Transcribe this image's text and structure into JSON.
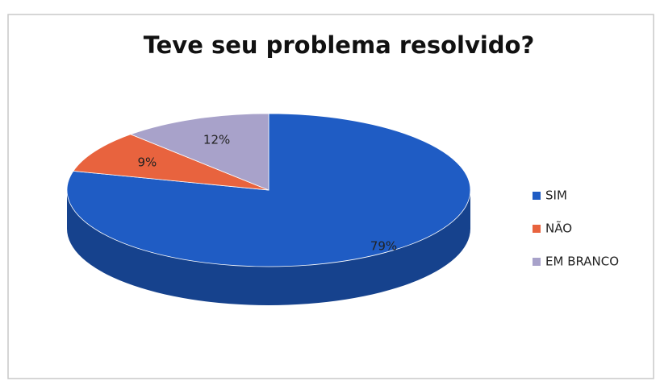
{
  "chart_data": {
    "type": "pie",
    "title": "Teve seu problema resolvido?",
    "categories": [
      "SIM",
      "NÃO",
      "EM BRANCO"
    ],
    "values": [
      79,
      9,
      12
    ],
    "value_labels": [
      "79%",
      "9%",
      "12%"
    ],
    "colors": [
      "#1f5cc4",
      "#e8633e",
      "#a8a2ca"
    ],
    "legend": "right"
  }
}
